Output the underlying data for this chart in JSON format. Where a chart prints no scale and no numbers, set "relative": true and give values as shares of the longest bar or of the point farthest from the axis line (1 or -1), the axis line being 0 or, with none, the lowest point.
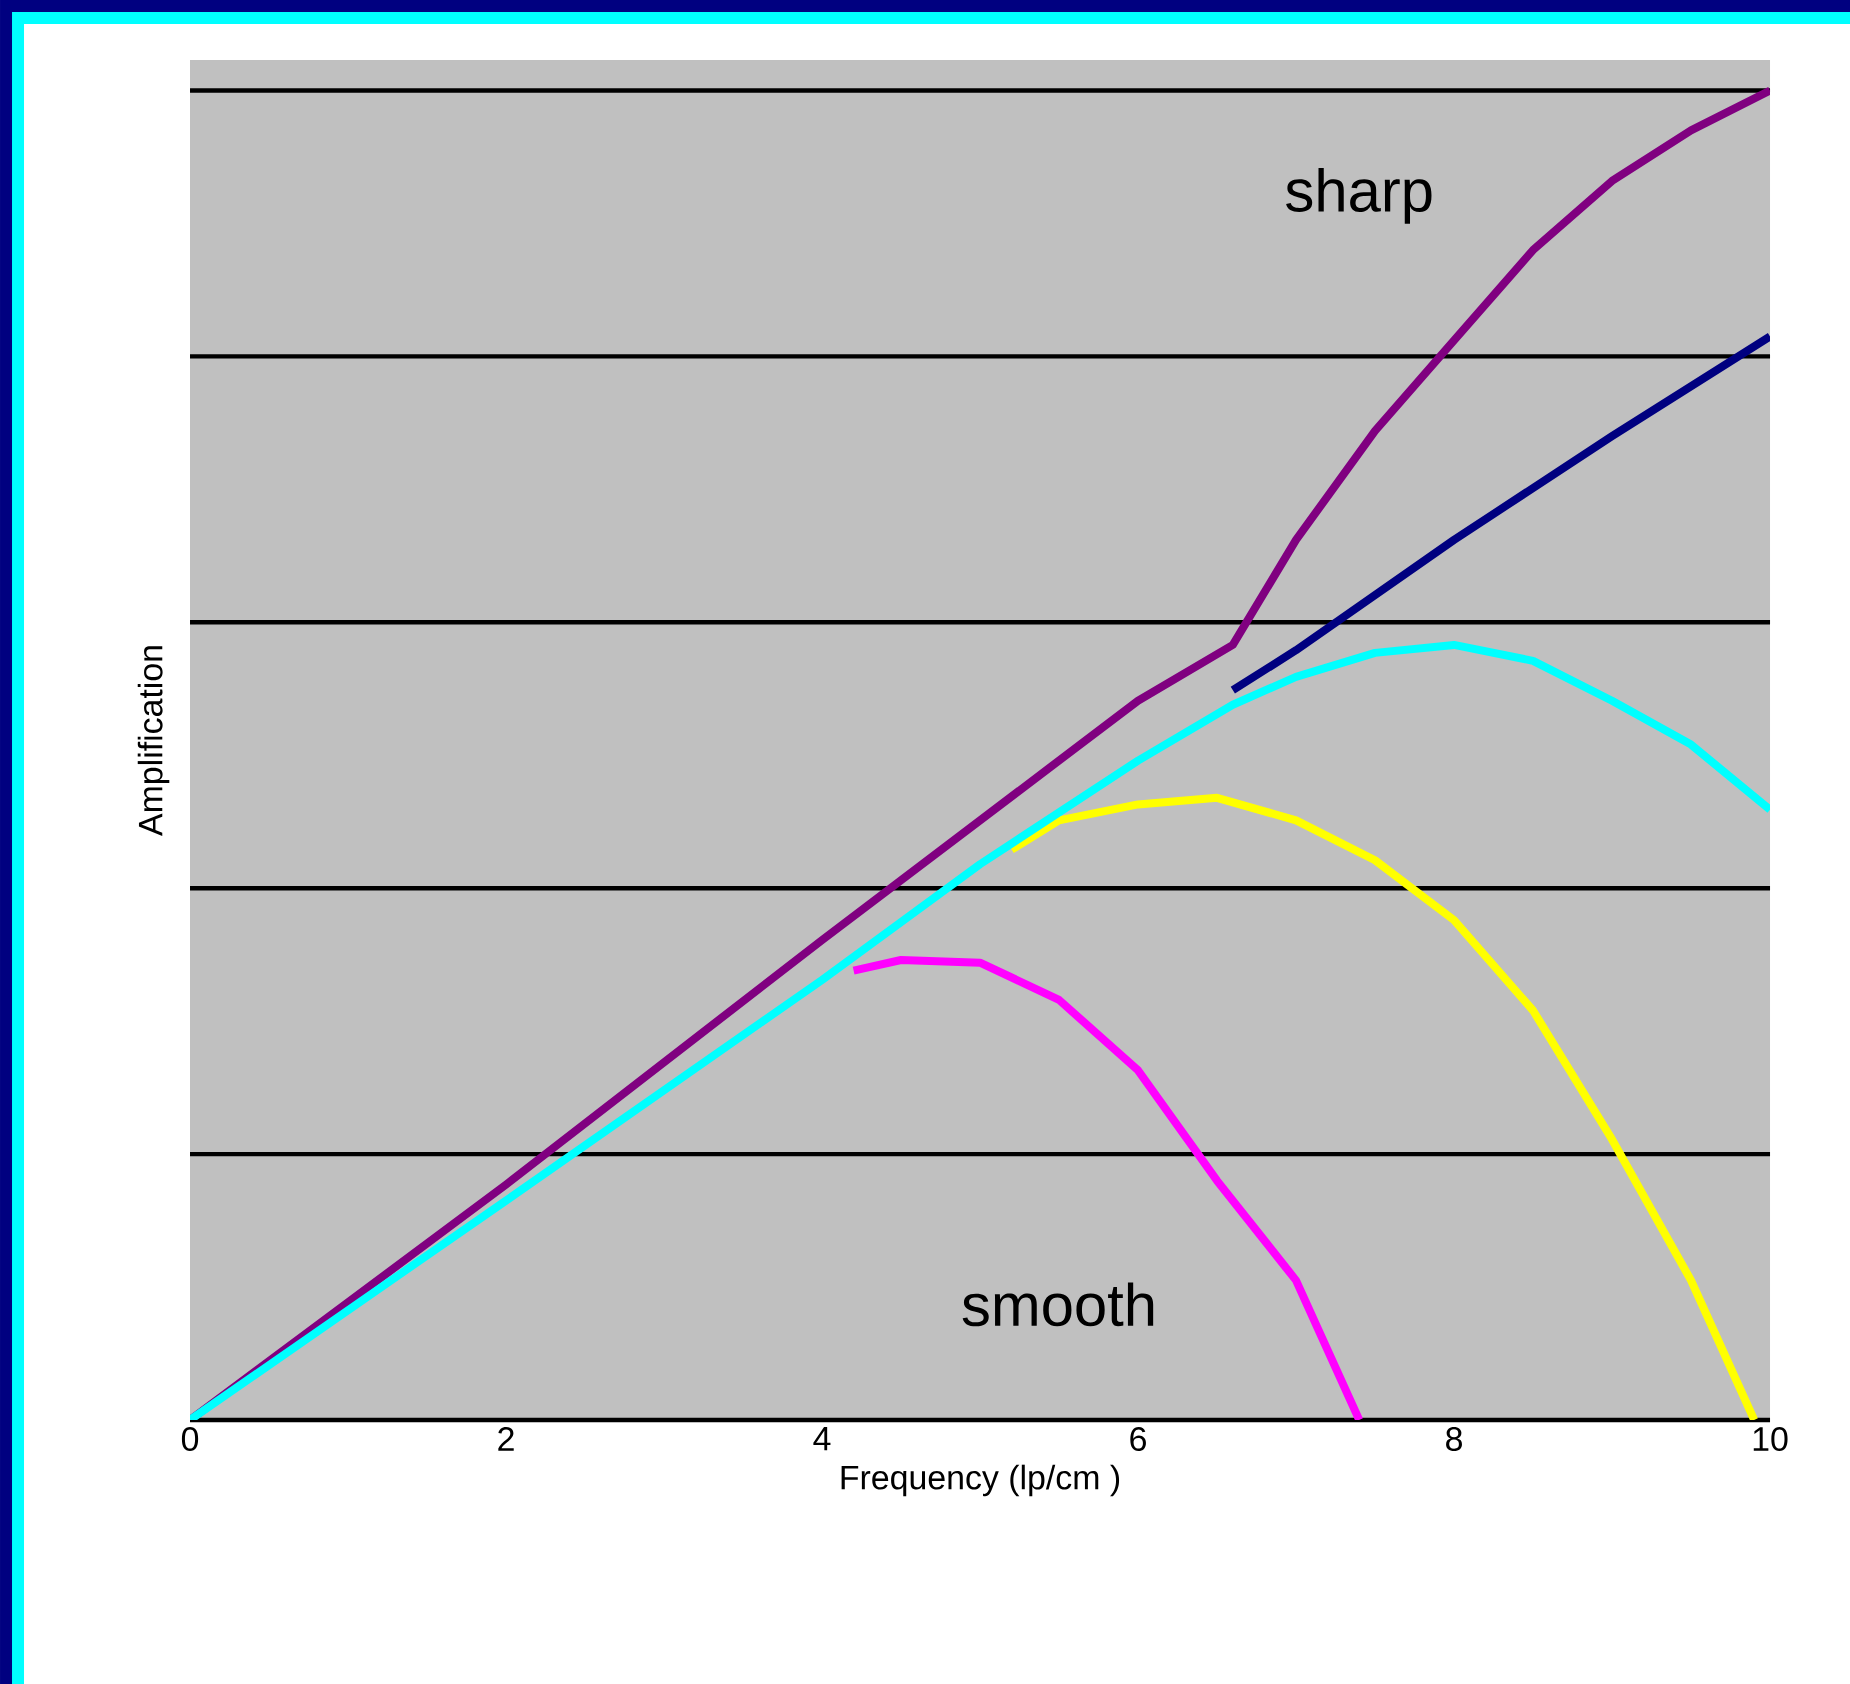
{
  "chart_data": {
    "type": "line",
    "relative": true,
    "xlabel": "Frequency (lp/cm )",
    "ylabel": "Amplification",
    "xlim": [
      0,
      10
    ],
    "xticks": [
      0,
      2,
      4,
      6,
      8,
      10
    ],
    "grid": "y",
    "tick_labels": "x",
    "marker": "none",
    "line_style": "solid",
    "annotations": [
      "sharp",
      "smooth"
    ],
    "series": [
      {
        "color": "#800080",
        "x": [
          0,
          2,
          4,
          6,
          6.6,
          7,
          7.5,
          8,
          8.5,
          9,
          9.5,
          10
        ],
        "values": [
          0,
          0.177,
          0.361,
          0.541,
          0.583,
          0.662,
          0.744,
          0.812,
          0.88,
          0.932,
          0.97,
          1
        ]
      },
      {
        "color": "#000080",
        "x": [
          6.6,
          7,
          8,
          9,
          10
        ],
        "values": [
          0.549,
          0.579,
          0.662,
          0.74,
          0.815
        ]
      },
      {
        "color": "#ff00ff",
        "x": [
          4.2,
          4.5,
          5,
          5.5,
          6,
          6.5,
          7,
          7.4
        ],
        "values": [
          0.338,
          0.346,
          0.344,
          0.316,
          0.263,
          0.18,
          0.105,
          0
        ]
      },
      {
        "color": "#ffff00",
        "x": [
          5.2,
          5.5,
          6,
          6.5,
          7,
          7.5,
          8,
          8.5,
          9,
          9.5,
          9.9
        ],
        "values": [
          0.429,
          0.451,
          0.463,
          0.468,
          0.451,
          0.421,
          0.376,
          0.308,
          0.211,
          0.105,
          0
        ]
      },
      {
        "color": "#00ffff",
        "x": [
          0,
          2,
          4,
          5,
          6,
          6.6,
          7,
          7.5,
          8,
          8.5,
          9,
          9.5,
          10
        ],
        "values": [
          0,
          0.165,
          0.331,
          0.418,
          0.496,
          0.538,
          0.559,
          0.577,
          0.583,
          0.571,
          0.541,
          0.508,
          0.459
        ]
      }
    ]
  }
}
